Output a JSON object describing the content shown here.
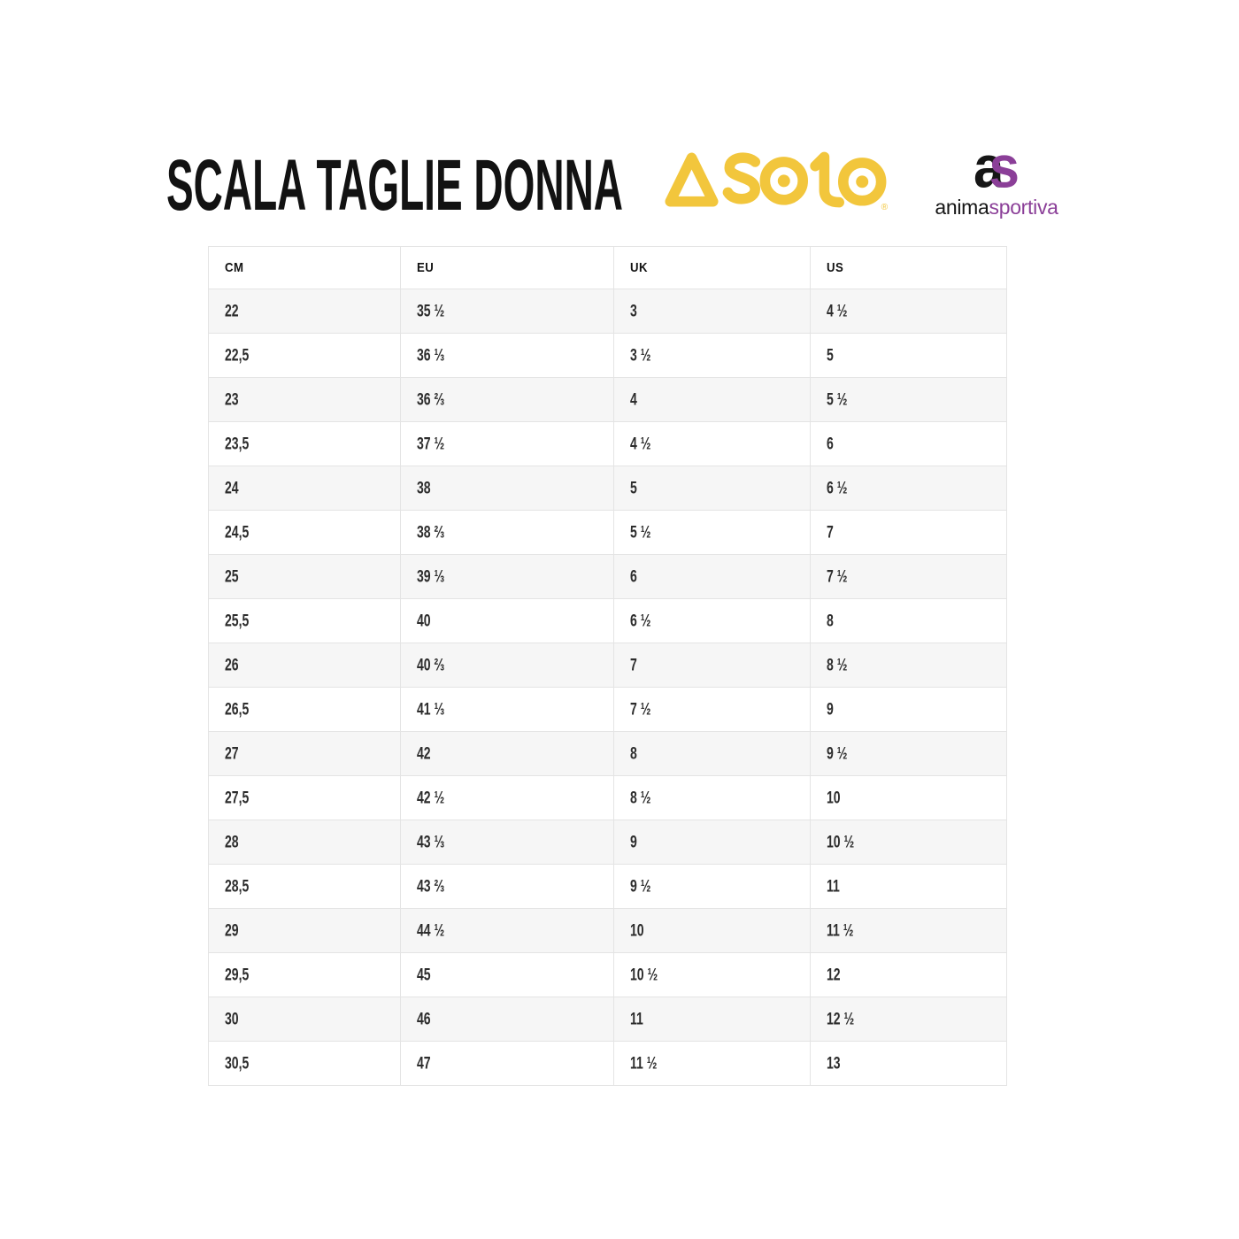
{
  "page": {
    "background": "#ffffff"
  },
  "header": {
    "title": "SCALA TAGLIE DONNA",
    "asolo": {
      "brand": "ASOLO",
      "color": "#F2C63C",
      "registered_mark": "®"
    },
    "animasportiva": {
      "monogram_a": "a",
      "monogram_s": "s",
      "word_dark": "anima",
      "word_accent": "sportiva",
      "dark_color": "#161616",
      "accent_color": "#8B3F98"
    }
  },
  "table": {
    "columns": [
      "CM",
      "EU",
      "UK",
      "US"
    ],
    "rows": [
      {
        "cm": "22",
        "eu": "35 ½",
        "uk": "3",
        "us": "4 ½"
      },
      {
        "cm": "22,5",
        "eu": "36 ⅓",
        "uk": "3 ½",
        "us": "5"
      },
      {
        "cm": "23",
        "eu": "36 ⅔",
        "uk": "4",
        "us": "5 ½"
      },
      {
        "cm": "23,5",
        "eu": "37 ½",
        "uk": "4 ½",
        "us": "6"
      },
      {
        "cm": "24",
        "eu": "38",
        "uk": "5",
        "us": "6 ½"
      },
      {
        "cm": "24,5",
        "eu": "38 ⅔",
        "uk": "5 ½",
        "us": "7"
      },
      {
        "cm": "25",
        "eu": "39 ⅓",
        "uk": "6",
        "us": "7 ½"
      },
      {
        "cm": "25,5",
        "eu": "40",
        "uk": "6 ½",
        "us": "8"
      },
      {
        "cm": "26",
        "eu": "40 ⅔",
        "uk": "7",
        "us": "8 ½"
      },
      {
        "cm": "26,5",
        "eu": "41 ⅓",
        "uk": "7 ½",
        "us": "9"
      },
      {
        "cm": "27",
        "eu": "42",
        "uk": "8",
        "us": "9 ½"
      },
      {
        "cm": "27,5",
        "eu": "42 ½",
        "uk": "8 ½",
        "us": "10"
      },
      {
        "cm": "28",
        "eu": "43 ⅓",
        "uk": "9",
        "us": "10 ½"
      },
      {
        "cm": "28,5",
        "eu": "43 ⅔",
        "uk": "9 ½",
        "us": "11"
      },
      {
        "cm": "29",
        "eu": "44 ½",
        "uk": "10",
        "us": "11 ½"
      },
      {
        "cm": "29,5",
        "eu": "45",
        "uk": "10 ½",
        "us": "12"
      },
      {
        "cm": "30",
        "eu": "46",
        "uk": "11",
        "us": "12 ½"
      },
      {
        "cm": "30,5",
        "eu": "47",
        "uk": "11 ½",
        "us": "13"
      }
    ],
    "colors": {
      "alt_row": "#f6f6f6",
      "border": "#e4e4e4",
      "text": "#2d2d2d"
    }
  },
  "chart_data": {
    "type": "table",
    "title": "SCALA TAGLIE DONNA",
    "columns": [
      "CM",
      "EU",
      "UK",
      "US"
    ],
    "rows": [
      [
        "22",
        "35 ½",
        "3",
        "4 ½"
      ],
      [
        "22,5",
        "36 ⅓",
        "3 ½",
        "5"
      ],
      [
        "23",
        "36 ⅔",
        "4",
        "5 ½"
      ],
      [
        "23,5",
        "37 ½",
        "4 ½",
        "6"
      ],
      [
        "24",
        "38",
        "5",
        "6 ½"
      ],
      [
        "24,5",
        "38 ⅔",
        "5 ½",
        "7"
      ],
      [
        "25",
        "39 ⅓",
        "6",
        "7 ½"
      ],
      [
        "25,5",
        "40",
        "6 ½",
        "8"
      ],
      [
        "26",
        "40 ⅔",
        "7",
        "8 ½"
      ],
      [
        "26,5",
        "41 ⅓",
        "7 ½",
        "9"
      ],
      [
        "27",
        "42",
        "8",
        "9 ½"
      ],
      [
        "27,5",
        "42 ½",
        "8 ½",
        "10"
      ],
      [
        "28",
        "43 ⅓",
        "9",
        "10 ½"
      ],
      [
        "28,5",
        "43 ⅔",
        "9 ½",
        "11"
      ],
      [
        "29",
        "44 ½",
        "10",
        "11 ½"
      ],
      [
        "29,5",
        "45",
        "10 ½",
        "12"
      ],
      [
        "30",
        "46",
        "11",
        "12 ½"
      ],
      [
        "30,5",
        "47",
        "11 ½",
        "13"
      ]
    ]
  }
}
